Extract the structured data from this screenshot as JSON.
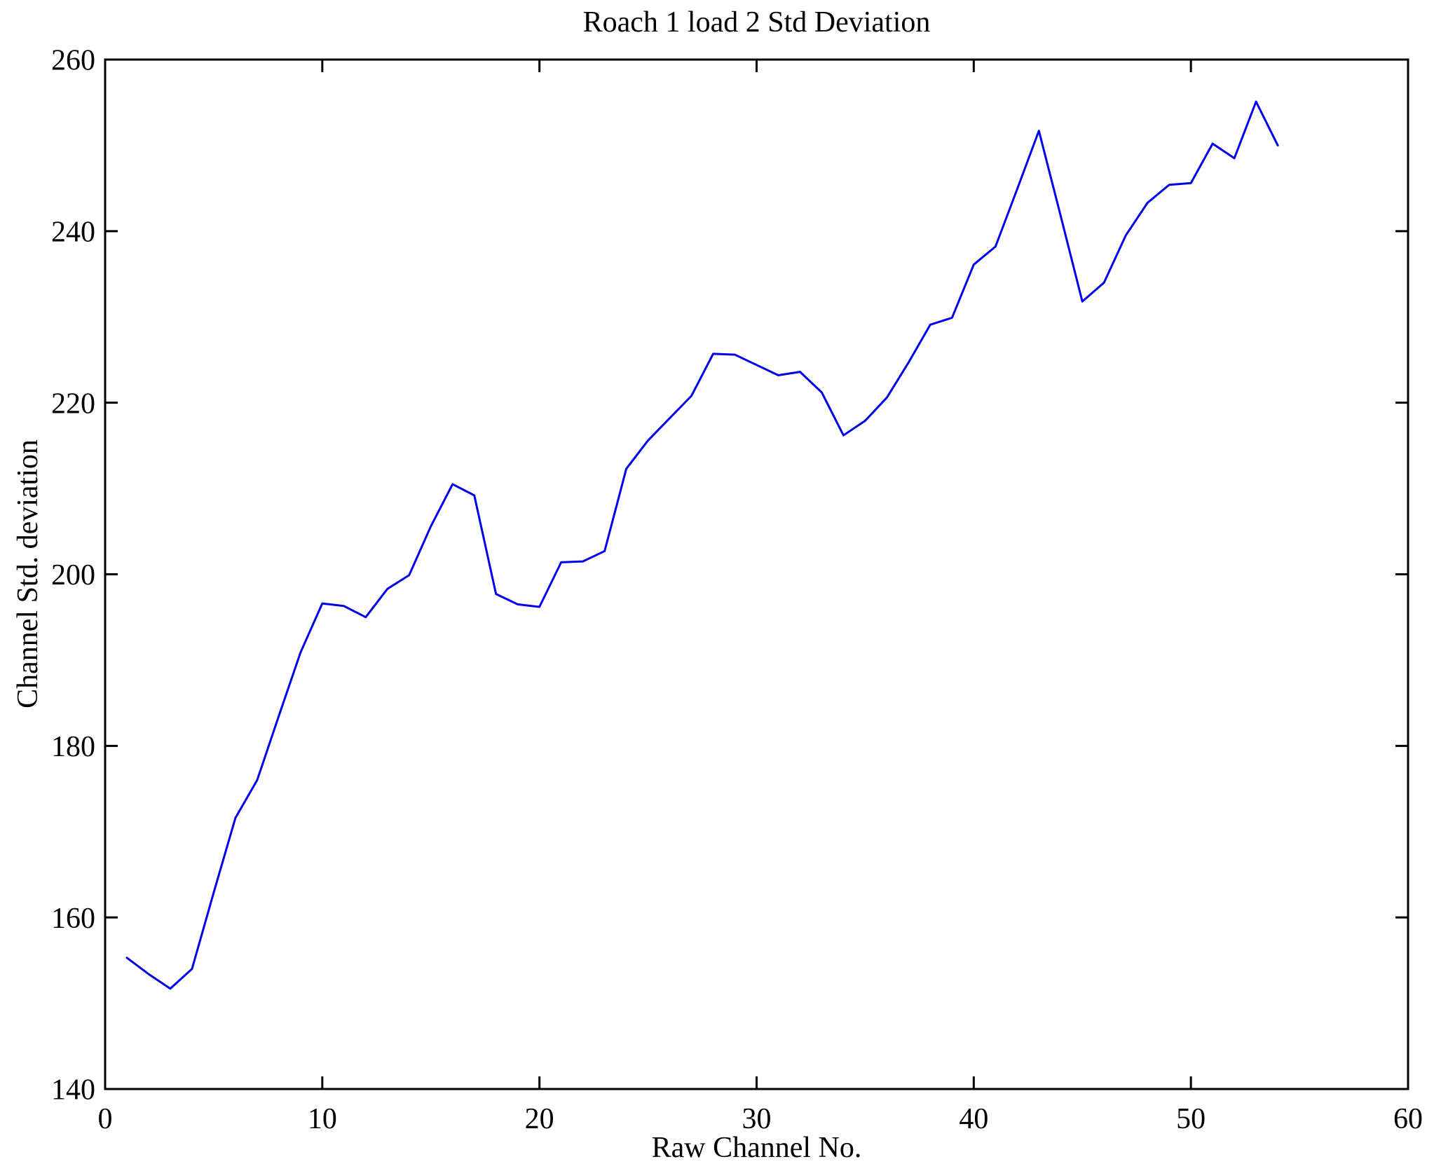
{
  "title": "Roach 1 load 2 Std Deviation",
  "chart_data": {
    "type": "line",
    "title": "Roach 1 load 2 Std Deviation",
    "xlabel": "Raw Channel No.",
    "ylabel": "Channel Std. deviation",
    "xlim": [
      0,
      60
    ],
    "ylim": [
      140,
      260
    ],
    "xticks": [
      0,
      10,
      20,
      30,
      40,
      50,
      60
    ],
    "yticks": [
      140,
      160,
      180,
      200,
      220,
      240,
      260
    ],
    "grid": false,
    "legend_position": "none",
    "line_color": "#0000ee",
    "axis_color": "#000000",
    "background_color": "#ffffff",
    "series": [
      {
        "name": "Channel Std. deviation",
        "x": [
          1,
          2,
          3,
          4,
          5,
          6,
          7,
          8,
          9,
          10,
          11,
          12,
          13,
          14,
          15,
          16,
          17,
          18,
          19,
          20,
          21,
          22,
          23,
          24,
          25,
          26,
          27,
          28,
          29,
          30,
          31,
          32,
          33,
          34,
          35,
          36,
          37,
          38,
          39,
          40,
          41,
          42,
          43,
          44,
          45,
          46,
          47,
          48,
          49,
          50,
          51,
          52,
          53,
          54
        ],
        "y": [
          155.3,
          153.4,
          151.7,
          154.0,
          162.9,
          171.6,
          176.0,
          183.5,
          190.9,
          196.6,
          196.3,
          195.0,
          198.3,
          199.9,
          205.6,
          210.5,
          209.2,
          197.7,
          196.5,
          196.2,
          201.4,
          201.5,
          202.7,
          212.3,
          215.6,
          218.2,
          220.8,
          225.7,
          225.6,
          224.4,
          223.2,
          223.6,
          221.2,
          216.2,
          217.9,
          220.6,
          224.7,
          229.1,
          229.9,
          236.1,
          238.2,
          244.9,
          251.7,
          241.8,
          231.8,
          234.0,
          239.5,
          243.3,
          245.4,
          245.6,
          250.2,
          248.5,
          255.1,
          250.0
        ]
      }
    ]
  }
}
